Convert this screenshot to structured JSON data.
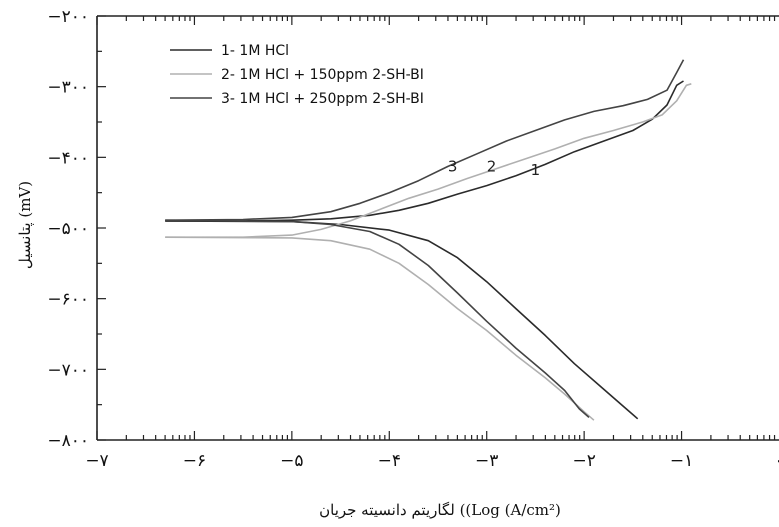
{
  "chart_data": {
    "type": "line",
    "xlabel": "لگاریتم دانسیته جریان ((Log (A/cm²)",
    "ylabel": "پتانسیل (mV)",
    "xlim": [
      -7,
      0
    ],
    "ylim": [
      -800,
      -200
    ],
    "x_ticks": [
      {
        "value": -7,
        "label": "−۷"
      },
      {
        "value": -6,
        "label": "−۶"
      },
      {
        "value": -5,
        "label": "−۵"
      },
      {
        "value": -4,
        "label": "−۴"
      },
      {
        "value": -3,
        "label": "−۳"
      },
      {
        "value": -2,
        "label": "−۲"
      },
      {
        "value": -1,
        "label": "−۱"
      },
      {
        "value": 0,
        "label": "۰"
      }
    ],
    "y_ticks": [
      {
        "value": -200,
        "label": "−۲۰۰"
      },
      {
        "value": -300,
        "label": "−۳۰۰"
      },
      {
        "value": -400,
        "label": "−۴۰۰"
      },
      {
        "value": -500,
        "label": "−۵۰۰"
      },
      {
        "value": -600,
        "label": "−۶۰۰"
      },
      {
        "value": -700,
        "label": "−۷۰۰"
      },
      {
        "value": -800,
        "label": "−۸۰۰"
      }
    ],
    "series": [
      {
        "name": "1- 1M HCl",
        "color": "#2b2b2b",
        "anodic": [
          [
            -6.3,
            -490
          ],
          [
            -5.5,
            -490
          ],
          [
            -5.0,
            -489
          ],
          [
            -4.6,
            -487
          ],
          [
            -4.2,
            -482
          ],
          [
            -3.9,
            -475
          ],
          [
            -3.6,
            -465
          ],
          [
            -3.3,
            -452
          ],
          [
            -3.0,
            -440
          ],
          [
            -2.7,
            -426
          ],
          [
            -2.4,
            -410
          ],
          [
            -2.1,
            -392
          ],
          [
            -1.8,
            -377
          ],
          [
            -1.5,
            -362
          ],
          [
            -1.3,
            -346
          ],
          [
            -1.15,
            -326
          ],
          [
            -1.05,
            -298
          ],
          [
            -0.98,
            -292
          ]
        ],
        "cathodic": [
          [
            -6.3,
            -490
          ],
          [
            -5.0,
            -491
          ],
          [
            -4.5,
            -495
          ],
          [
            -4.0,
            -503
          ],
          [
            -3.6,
            -518
          ],
          [
            -3.3,
            -542
          ],
          [
            -3.0,
            -576
          ],
          [
            -2.7,
            -614
          ],
          [
            -2.4,
            -652
          ],
          [
            -2.1,
            -692
          ],
          [
            -1.8,
            -728
          ],
          [
            -1.6,
            -752
          ],
          [
            -1.45,
            -770
          ]
        ]
      },
      {
        "name": "2- 1M HCl + 150ppm 2-SH-BI",
        "color": "#b0b0b0",
        "anodic": [
          [
            -6.3,
            -513
          ],
          [
            -5.5,
            -513
          ],
          [
            -5.0,
            -510
          ],
          [
            -4.7,
            -502
          ],
          [
            -4.4,
            -490
          ],
          [
            -4.1,
            -474
          ],
          [
            -3.8,
            -458
          ],
          [
            -3.5,
            -445
          ],
          [
            -3.2,
            -430
          ],
          [
            -2.9,
            -416
          ],
          [
            -2.6,
            -402
          ],
          [
            -2.3,
            -388
          ],
          [
            -2.0,
            -373
          ],
          [
            -1.7,
            -362
          ],
          [
            -1.4,
            -350
          ],
          [
            -1.2,
            -340
          ],
          [
            -1.05,
            -320
          ],
          [
            -0.95,
            -298
          ],
          [
            -0.9,
            -296
          ]
        ],
        "cathodic": [
          [
            -6.3,
            -513
          ],
          [
            -5.0,
            -514
          ],
          [
            -4.6,
            -518
          ],
          [
            -4.2,
            -530
          ],
          [
            -3.9,
            -550
          ],
          [
            -3.6,
            -580
          ],
          [
            -3.3,
            -614
          ],
          [
            -3.0,
            -645
          ],
          [
            -2.7,
            -680
          ],
          [
            -2.4,
            -712
          ],
          [
            -2.2,
            -735
          ],
          [
            -2.0,
            -760
          ],
          [
            -1.9,
            -772
          ]
        ]
      },
      {
        "name": "3- 1M HCl + 250ppm 2-SH-BI",
        "color": "#444444",
        "anodic": [
          [
            -6.3,
            -489
          ],
          [
            -5.5,
            -488
          ],
          [
            -5.0,
            -485
          ],
          [
            -4.6,
            -477
          ],
          [
            -4.3,
            -465
          ],
          [
            -4.0,
            -450
          ],
          [
            -3.7,
            -433
          ],
          [
            -3.4,
            -413
          ],
          [
            -3.1,
            -395
          ],
          [
            -2.8,
            -377
          ],
          [
            -2.5,
            -362
          ],
          [
            -2.2,
            -347
          ],
          [
            -1.9,
            -335
          ],
          [
            -1.6,
            -327
          ],
          [
            -1.35,
            -318
          ],
          [
            -1.15,
            -305
          ],
          [
            -1.05,
            -280
          ],
          [
            -0.98,
            -262
          ]
        ],
        "cathodic": [
          [
            -6.3,
            -489
          ],
          [
            -5.0,
            -491
          ],
          [
            -4.6,
            -495
          ],
          [
            -4.2,
            -505
          ],
          [
            -3.9,
            -523
          ],
          [
            -3.6,
            -553
          ],
          [
            -3.3,
            -592
          ],
          [
            -3.0,
            -632
          ],
          [
            -2.7,
            -670
          ],
          [
            -2.4,
            -705
          ],
          [
            -2.2,
            -730
          ],
          [
            -2.05,
            -756
          ],
          [
            -1.95,
            -768
          ]
        ]
      }
    ],
    "curve_labels": [
      {
        "text": "3",
        "x": -3.35,
        "y": -413
      },
      {
        "text": "2",
        "x": -2.95,
        "y": -413
      },
      {
        "text": "1",
        "x": -2.5,
        "y": -418
      }
    ]
  }
}
